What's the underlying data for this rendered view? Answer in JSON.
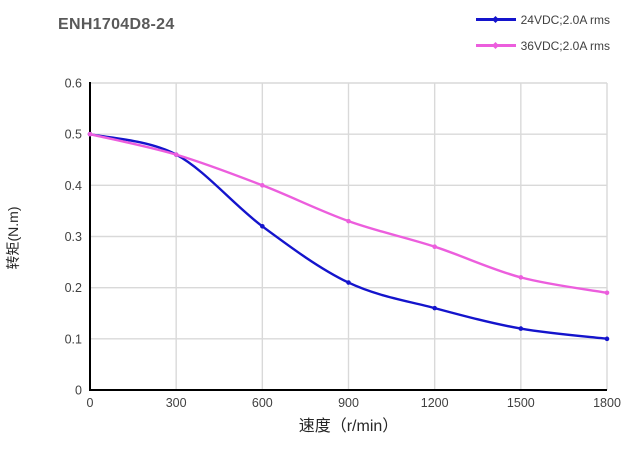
{
  "page": {
    "title": "ENH1704D8-24"
  },
  "legend": {
    "items": [
      {
        "label": "24VDC;2.0A rms",
        "color": "#1414CC"
      },
      {
        "label": "36VDC;2.0A rms",
        "color": "#EC5EDD"
      }
    ]
  },
  "chart_data": {
    "type": "line",
    "title": "ENH1704D8-24",
    "xlabel": "速度（r/min）",
    "ylabel": "转矩(N.m)",
    "x": [
      0,
      300,
      600,
      900,
      1200,
      1500,
      1800
    ],
    "series": [
      {
        "name": "24VDC;2.0A rms",
        "color": "#1414CC",
        "values": [
          0.5,
          0.46,
          0.32,
          0.21,
          0.16,
          0.12,
          0.1
        ]
      },
      {
        "name": "36VDC;2.0A rms",
        "color": "#EC5EDD",
        "values": [
          0.5,
          0.46,
          0.4,
          0.33,
          0.28,
          0.22,
          0.19
        ]
      }
    ],
    "xlim": [
      0,
      1800
    ],
    "ylim": [
      0,
      0.6
    ],
    "xticks": [
      0,
      300,
      600,
      900,
      1200,
      1500,
      1800
    ],
    "yticks": [
      0,
      0.1,
      0.2,
      0.3,
      0.4,
      0.5,
      0.6
    ],
    "grid": true,
    "legend_position": "top-right",
    "line_style": "smooth",
    "marker": "dot",
    "colors": {
      "grid": "#D9D9D9",
      "axis": "#000000",
      "tick_text": "#404040",
      "title_text": "#595959"
    }
  }
}
